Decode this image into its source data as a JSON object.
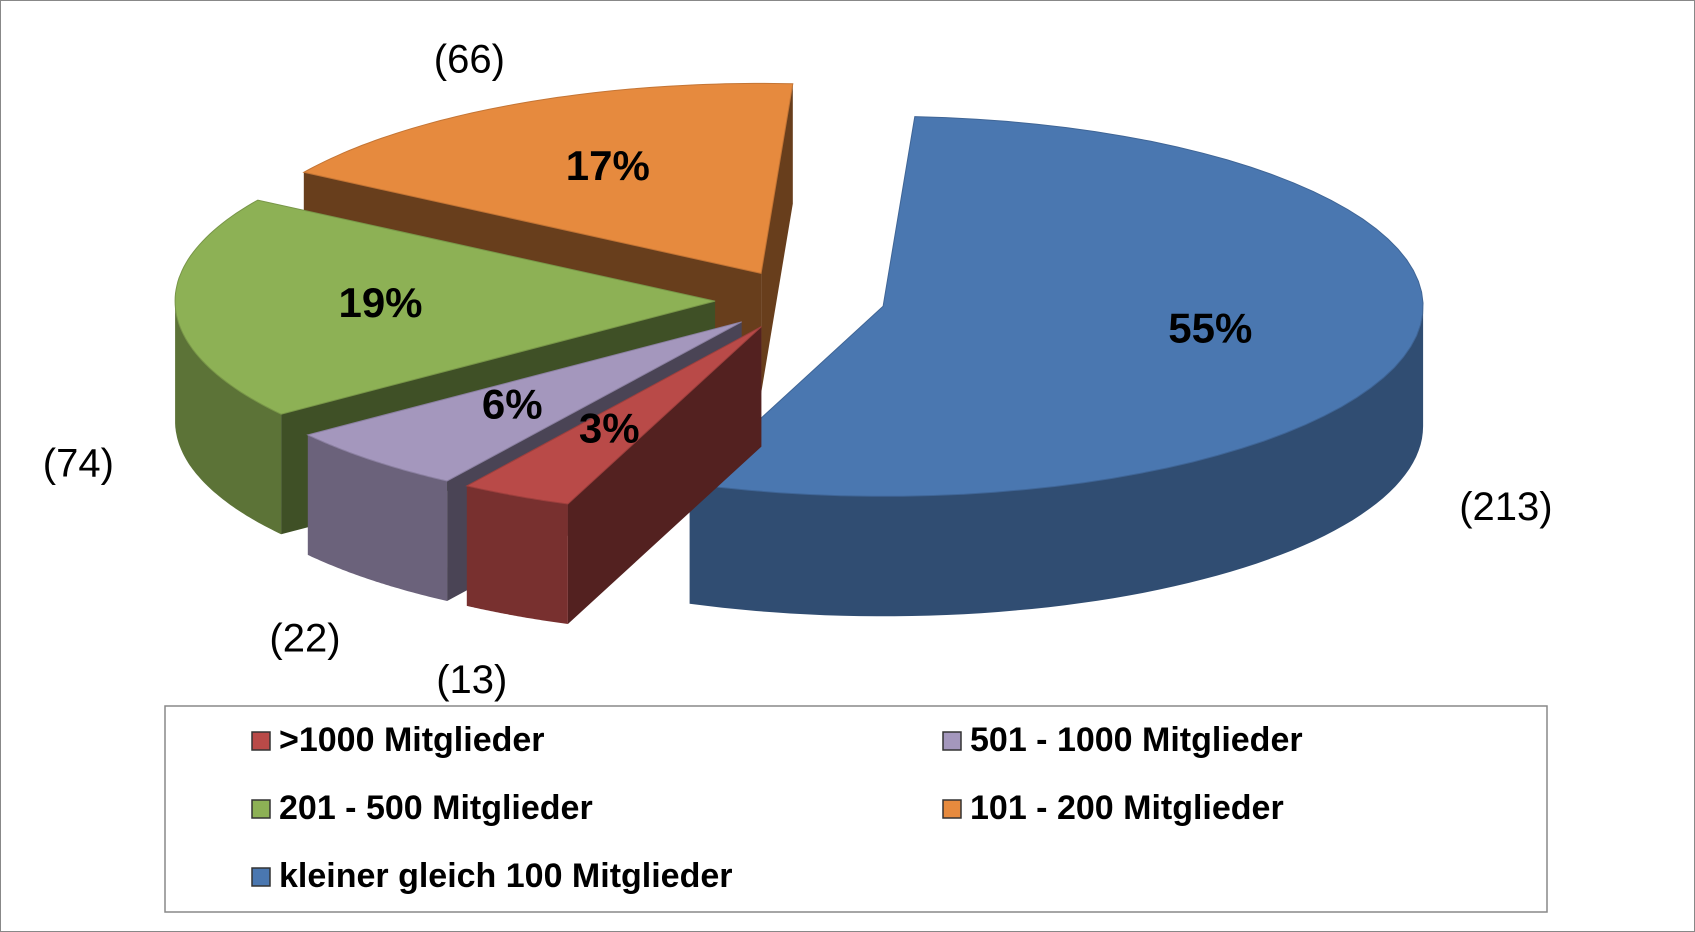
{
  "chart_data": {
    "type": "pie3d",
    "categories": [
      ">1000 Mitglieder",
      "501 - 1000 Mitglieder",
      "201 - 500 Mitglieder",
      "101 - 200 Mitglieder",
      "kleiner gleich 100 Mitglieder"
    ],
    "values": [
      13,
      22,
      74,
      66,
      213
    ],
    "value_labels": [
      "(13)",
      "(22)",
      "(74)",
      "(66)",
      "(213)"
    ],
    "percentages": [
      3,
      6,
      19,
      17,
      55
    ],
    "percentage_labels": [
      "3%",
      "6%",
      "19%",
      "17%",
      "55%"
    ],
    "colors": [
      "#b94a48",
      "#a497bd",
      "#8db155",
      "#e68a3e",
      "#4a77b0"
    ],
    "legend": "bottom"
  }
}
